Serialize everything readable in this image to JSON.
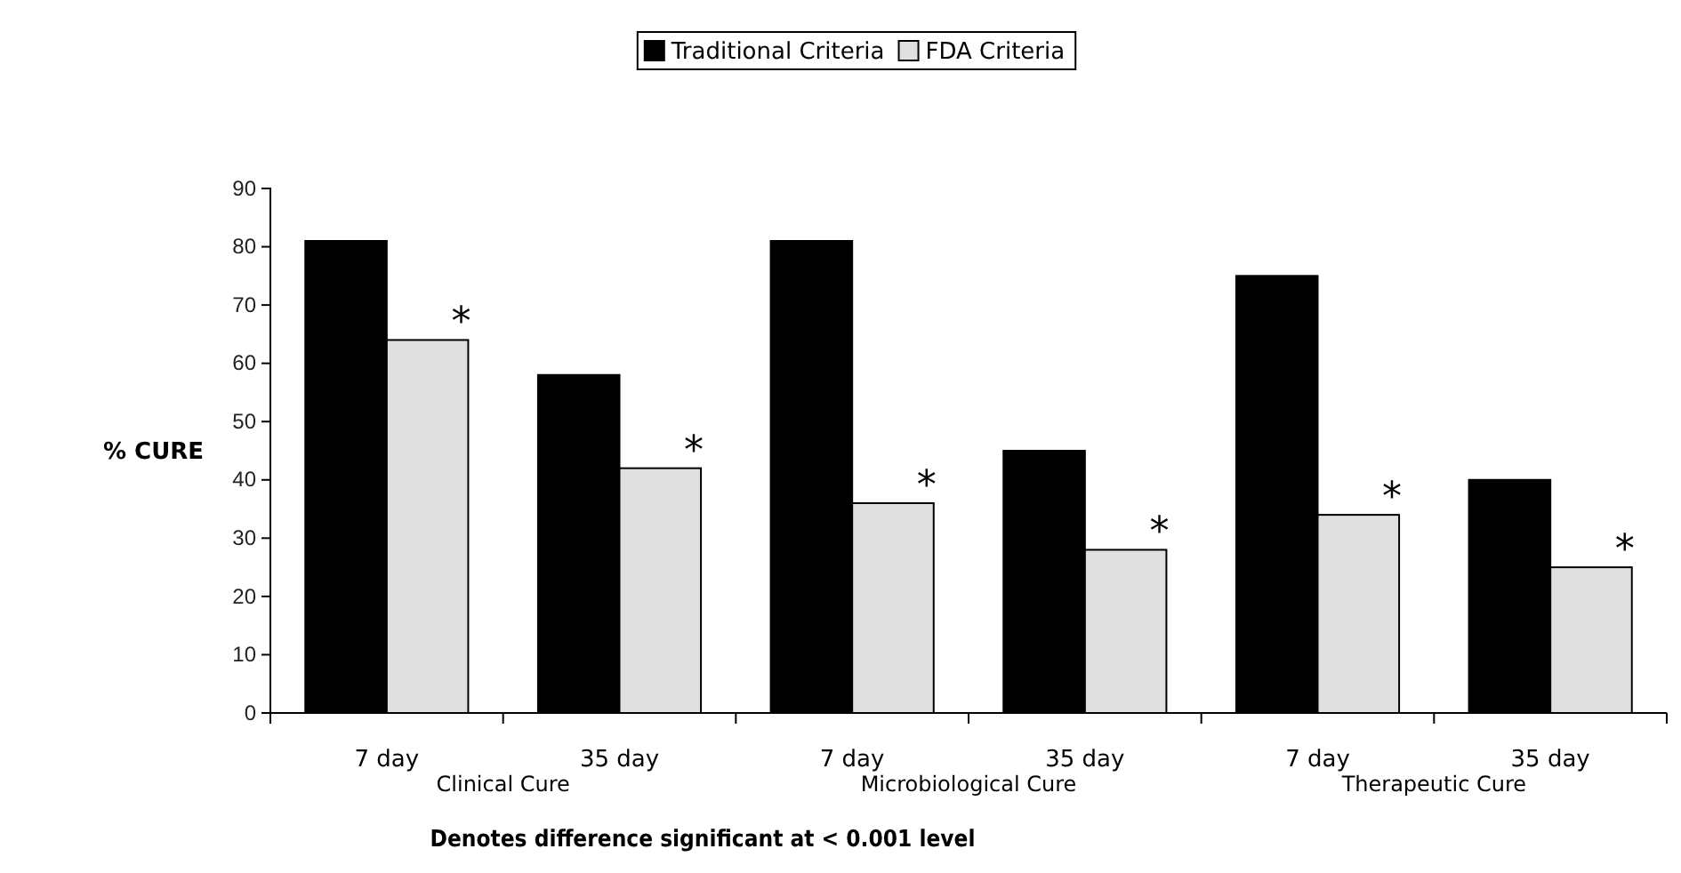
{
  "chart_data": {
    "type": "bar",
    "ylabel": "% CURE",
    "categories": [
      "7 day",
      "35 day",
      "7 day",
      "35 day",
      "7 day",
      "35 day"
    ],
    "series": [
      {
        "name": "Traditional Criteria",
        "color": "#000000",
        "values": [
          81,
          58,
          81,
          45,
          75,
          40
        ]
      },
      {
        "name": "FDA Criteria",
        "color": "#e0e0e0",
        "values": [
          64,
          42,
          36,
          28,
          34,
          25
        ],
        "value_labels": [
          "*",
          "*",
          "*",
          "*",
          "*",
          "*"
        ]
      }
    ],
    "ylim": [
      0,
      90
    ],
    "yticks": [
      0,
      10,
      20,
      30,
      40,
      50,
      60,
      70,
      80,
      90
    ],
    "grid": false,
    "legend": "top",
    "annotations": [
      "Clinical Cure",
      "Microbiological Cure",
      "Therapeutic Cure",
      "Denotes difference significant at < 0.001 level"
    ]
  }
}
